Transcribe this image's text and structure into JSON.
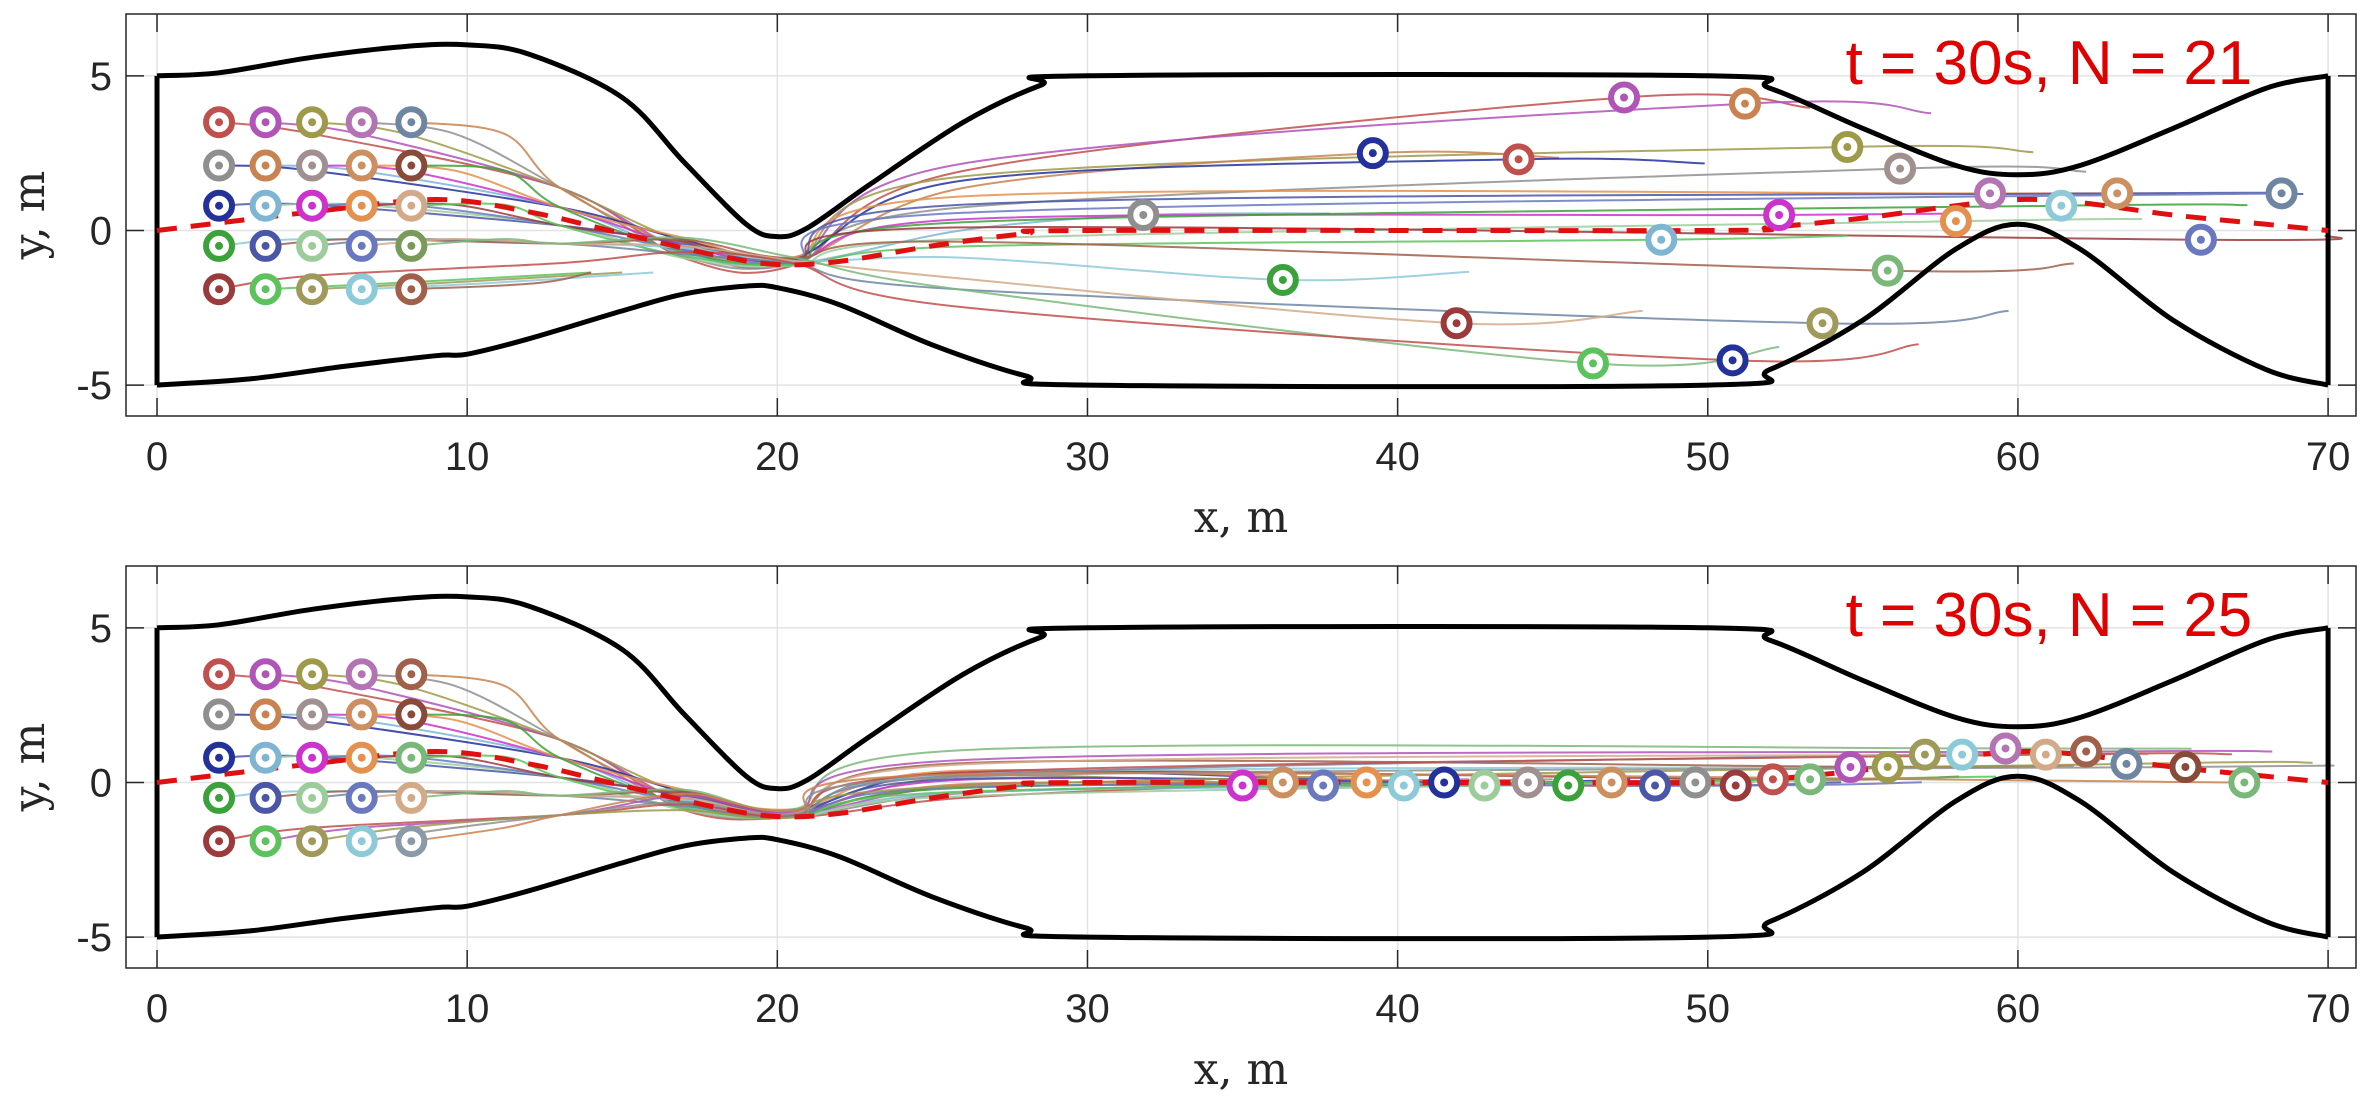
{
  "chart_data": [
    {
      "type": "line",
      "panel": "top",
      "annotation": "t = 30s, N = 21",
      "time_s": 30,
      "agent_count": 21,
      "xlabel": "x, m",
      "ylabel": "y, m",
      "xlim": [
        -1,
        70.9
      ],
      "ylim": [
        -6,
        7
      ],
      "x_ticks": [
        0,
        10,
        20,
        30,
        40,
        50,
        60,
        70
      ],
      "y_ticks": [
        -5,
        0,
        5
      ],
      "grid": true,
      "boundary_upper": [
        [
          0,
          5
        ],
        [
          2,
          5.1
        ],
        [
          5,
          5.6
        ],
        [
          8,
          5.95
        ],
        [
          10,
          6
        ],
        [
          12,
          5.7
        ],
        [
          15,
          4.3
        ],
        [
          17,
          2.2
        ],
        [
          19,
          0.2
        ],
        [
          20,
          -0.2
        ],
        [
          21,
          0.1
        ],
        [
          23,
          1.5
        ],
        [
          26,
          3.5
        ],
        [
          28.5,
          4.7
        ],
        [
          30,
          5
        ],
        [
          50,
          5
        ],
        [
          52,
          4.6
        ],
        [
          55,
          3.3
        ],
        [
          58,
          2.1
        ],
        [
          60,
          1.8
        ],
        [
          62,
          2.1
        ],
        [
          65,
          3.3
        ],
        [
          68,
          4.6
        ],
        [
          70,
          5
        ]
      ],
      "boundary_lower": [
        [
          0,
          -5
        ],
        [
          3,
          -4.8
        ],
        [
          6,
          -4.4
        ],
        [
          9,
          -4.05
        ],
        [
          10,
          -4
        ],
        [
          12,
          -3.5
        ],
        [
          15,
          -2.6
        ],
        [
          17,
          -2.05
        ],
        [
          19,
          -1.8
        ],
        [
          20,
          -1.85
        ],
        [
          22,
          -2.4
        ],
        [
          25,
          -3.7
        ],
        [
          28,
          -4.7
        ],
        [
          30,
          -5
        ],
        [
          50,
          -5
        ],
        [
          52,
          -4.5
        ],
        [
          55,
          -2.9
        ],
        [
          58,
          -0.6
        ],
        [
          60,
          0.2
        ],
        [
          62,
          -0.6
        ],
        [
          65,
          -2.9
        ],
        [
          68,
          -4.5
        ],
        [
          70,
          -5
        ]
      ],
      "reference_path": [
        [
          0,
          0
        ],
        [
          5,
          0.6
        ],
        [
          9,
          1.0
        ],
        [
          12,
          0.6
        ],
        [
          15,
          -0.1
        ],
        [
          18,
          -0.8
        ],
        [
          20,
          -1.1
        ],
        [
          22,
          -1.0
        ],
        [
          25,
          -0.5
        ],
        [
          28,
          -0.1
        ],
        [
          30,
          0
        ],
        [
          50,
          0
        ],
        [
          52,
          0.1
        ],
        [
          55,
          0.4
        ],
        [
          58,
          0.8
        ],
        [
          60,
          1.0
        ],
        [
          62,
          0.9
        ],
        [
          65,
          0.5
        ],
        [
          68,
          0.2
        ],
        [
          70,
          0
        ]
      ],
      "agents_initial": [
        {
          "x": 2,
          "y": 3.5,
          "color": "#c0504d"
        },
        {
          "x": 3.5,
          "y": 3.5,
          "color": "#b054b8"
        },
        {
          "x": 5,
          "y": 3.5,
          "color": "#9f9a4a"
        },
        {
          "x": 6.6,
          "y": 3.5,
          "color": "#b474b4"
        },
        {
          "x": 8.2,
          "y": 3.5,
          "color": "#6f86a3"
        },
        {
          "x": 2,
          "y": 2.1,
          "color": "#8f8f8f"
        },
        {
          "x": 3.5,
          "y": 2.1,
          "color": "#c98350"
        },
        {
          "x": 5,
          "y": 2.1,
          "color": "#a09090"
        },
        {
          "x": 6.6,
          "y": 2.1,
          "color": "#cc9060"
        },
        {
          "x": 8.2,
          "y": 2.1,
          "color": "#8a4a3a"
        },
        {
          "x": 2,
          "y": 0.8,
          "color": "#23319b"
        },
        {
          "x": 3.5,
          "y": 0.8,
          "color": "#7db5d3"
        },
        {
          "x": 5,
          "y": 0.8,
          "color": "#cc33cc"
        },
        {
          "x": 6.6,
          "y": 0.8,
          "color": "#e4904f"
        },
        {
          "x": 8.2,
          "y": 0.8,
          "color": "#d2aa88"
        },
        {
          "x": 2,
          "y": -0.5,
          "color": "#3ba13b"
        },
        {
          "x": 3.5,
          "y": -0.5,
          "color": "#4a56a8"
        },
        {
          "x": 5,
          "y": -0.5,
          "color": "#9ccc9c"
        },
        {
          "x": 6.6,
          "y": -0.5,
          "color": "#6a78c0"
        },
        {
          "x": 8.2,
          "y": -0.5,
          "color": "#7a9a5a"
        },
        {
          "x": 2,
          "y": -1.9,
          "color": "#9a3a3a"
        },
        {
          "x": 3.5,
          "y": -1.9,
          "color": "#5cc35c"
        },
        {
          "x": 5,
          "y": -1.9,
          "color": "#9f9a5a"
        },
        {
          "x": 6.6,
          "y": -1.9,
          "color": "#8ccad8"
        },
        {
          "x": 8.2,
          "y": -1.9,
          "color": "#a0604a"
        }
      ],
      "agents_final": [
        {
          "x": 47.3,
          "y": 4.3,
          "color": "#b054b8"
        },
        {
          "x": 51.2,
          "y": 4.1,
          "color": "#c98350"
        },
        {
          "x": 54.5,
          "y": 2.7,
          "color": "#9f9a4a"
        },
        {
          "x": 56.2,
          "y": 2.0,
          "color": "#a09090"
        },
        {
          "x": 39.2,
          "y": 2.5,
          "color": "#23319b"
        },
        {
          "x": 43.9,
          "y": 2.3,
          "color": "#c0504d"
        },
        {
          "x": 31.8,
          "y": 0.5,
          "color": "#8f8f8f"
        },
        {
          "x": 52.3,
          "y": 0.5,
          "color": "#cc33cc"
        },
        {
          "x": 59.1,
          "y": 1.2,
          "color": "#b474b4"
        },
        {
          "x": 61.4,
          "y": 0.8,
          "color": "#8ccad8"
        },
        {
          "x": 63.2,
          "y": 1.2,
          "color": "#cc9060"
        },
        {
          "x": 58.0,
          "y": 0.3,
          "color": "#e4904f"
        },
        {
          "x": 68.5,
          "y": 1.2,
          "color": "#6f86a3"
        },
        {
          "x": 65.9,
          "y": -0.3,
          "color": "#6a78c0"
        },
        {
          "x": 48.5,
          "y": -0.3,
          "color": "#7db5d3"
        },
        {
          "x": 36.3,
          "y": -1.6,
          "color": "#3ba13b"
        },
        {
          "x": 55.8,
          "y": -1.3,
          "color": "#7ab87a"
        },
        {
          "x": 53.7,
          "y": -3.0,
          "color": "#9f9a5a"
        },
        {
          "x": 41.9,
          "y": -3.0,
          "color": "#9a3a3a"
        },
        {
          "x": 46.3,
          "y": -4.3,
          "color": "#5cc35c"
        },
        {
          "x": 50.8,
          "y": -4.2,
          "color": "#23319b"
        }
      ]
    },
    {
      "type": "line",
      "panel": "bottom",
      "annotation": "t = 30s, N = 25",
      "time_s": 30,
      "agent_count": 25,
      "xlabel": "x, m",
      "ylabel": "y, m",
      "xlim": [
        -1,
        70.9
      ],
      "ylim": [
        -6,
        7
      ],
      "x_ticks": [
        0,
        10,
        20,
        30,
        40,
        50,
        60,
        70
      ],
      "y_ticks": [
        -5,
        0,
        5
      ],
      "grid": true,
      "boundary_upper": [
        [
          0,
          5
        ],
        [
          2,
          5.1
        ],
        [
          5,
          5.6
        ],
        [
          8,
          5.95
        ],
        [
          10,
          6
        ],
        [
          12,
          5.7
        ],
        [
          15,
          4.3
        ],
        [
          17,
          2.2
        ],
        [
          19,
          0.2
        ],
        [
          20,
          -0.2
        ],
        [
          21,
          0.1
        ],
        [
          23,
          1.5
        ],
        [
          26,
          3.5
        ],
        [
          28.5,
          4.7
        ],
        [
          30,
          5
        ],
        [
          50,
          5
        ],
        [
          52,
          4.6
        ],
        [
          55,
          3.3
        ],
        [
          58,
          2.1
        ],
        [
          60,
          1.8
        ],
        [
          62,
          2.1
        ],
        [
          65,
          3.3
        ],
        [
          68,
          4.6
        ],
        [
          70,
          5
        ]
      ],
      "boundary_lower": [
        [
          0,
          -5
        ],
        [
          3,
          -4.8
        ],
        [
          6,
          -4.4
        ],
        [
          9,
          -4.05
        ],
        [
          10,
          -4
        ],
        [
          12,
          -3.5
        ],
        [
          15,
          -2.6
        ],
        [
          17,
          -2.05
        ],
        [
          19,
          -1.8
        ],
        [
          20,
          -1.85
        ],
        [
          22,
          -2.4
        ],
        [
          25,
          -3.7
        ],
        [
          28,
          -4.7
        ],
        [
          30,
          -5
        ],
        [
          50,
          -5
        ],
        [
          52,
          -4.5
        ],
        [
          55,
          -2.9
        ],
        [
          58,
          -0.6
        ],
        [
          60,
          0.2
        ],
        [
          62,
          -0.6
        ],
        [
          65,
          -2.9
        ],
        [
          68,
          -4.5
        ],
        [
          70,
          -5
        ]
      ],
      "reference_path": [
        [
          0,
          0
        ],
        [
          5,
          0.6
        ],
        [
          9,
          1.0
        ],
        [
          12,
          0.6
        ],
        [
          15,
          -0.1
        ],
        [
          18,
          -0.8
        ],
        [
          20,
          -1.1
        ],
        [
          22,
          -1.0
        ],
        [
          25,
          -0.5
        ],
        [
          28,
          -0.1
        ],
        [
          30,
          0
        ],
        [
          50,
          0
        ],
        [
          52,
          0.1
        ],
        [
          55,
          0.4
        ],
        [
          58,
          0.8
        ],
        [
          60,
          1.0
        ],
        [
          62,
          0.9
        ],
        [
          65,
          0.5
        ],
        [
          68,
          0.2
        ],
        [
          70,
          0
        ]
      ],
      "agents_initial": [
        {
          "x": 2,
          "y": 3.5,
          "color": "#c0504d"
        },
        {
          "x": 3.5,
          "y": 3.5,
          "color": "#b054b8"
        },
        {
          "x": 5,
          "y": 3.5,
          "color": "#9f9a4a"
        },
        {
          "x": 6.6,
          "y": 3.5,
          "color": "#b474b4"
        },
        {
          "x": 8.2,
          "y": 3.5,
          "color": "#a0604a"
        },
        {
          "x": 2,
          "y": 2.2,
          "color": "#8f8f8f"
        },
        {
          "x": 3.5,
          "y": 2.2,
          "color": "#c98350"
        },
        {
          "x": 5,
          "y": 2.2,
          "color": "#a09090"
        },
        {
          "x": 6.6,
          "y": 2.2,
          "color": "#cc9060"
        },
        {
          "x": 8.2,
          "y": 2.2,
          "color": "#8a4a3a"
        },
        {
          "x": 2,
          "y": 0.8,
          "color": "#23319b"
        },
        {
          "x": 3.5,
          "y": 0.8,
          "color": "#7db5d3"
        },
        {
          "x": 5,
          "y": 0.8,
          "color": "#cc33cc"
        },
        {
          "x": 6.6,
          "y": 0.8,
          "color": "#e4904f"
        },
        {
          "x": 8.2,
          "y": 0.8,
          "color": "#7ab87a"
        },
        {
          "x": 2,
          "y": -0.5,
          "color": "#3ba13b"
        },
        {
          "x": 3.5,
          "y": -0.5,
          "color": "#4a56a8"
        },
        {
          "x": 5,
          "y": -0.5,
          "color": "#9ccc9c"
        },
        {
          "x": 6.6,
          "y": -0.5,
          "color": "#6a78c0"
        },
        {
          "x": 8.2,
          "y": -0.5,
          "color": "#d2aa88"
        },
        {
          "x": 2,
          "y": -1.9,
          "color": "#9a3a3a"
        },
        {
          "x": 3.5,
          "y": -1.9,
          "color": "#5cc35c"
        },
        {
          "x": 5,
          "y": -1.9,
          "color": "#9f9a5a"
        },
        {
          "x": 6.6,
          "y": -1.9,
          "color": "#8ccad8"
        },
        {
          "x": 8.2,
          "y": -1.9,
          "color": "#8a9aa8"
        }
      ],
      "agents_final": [
        {
          "x": 35.0,
          "y": -0.1,
          "color": "#cc33cc"
        },
        {
          "x": 36.3,
          "y": 0.0,
          "color": "#cc9060"
        },
        {
          "x": 37.6,
          "y": -0.1,
          "color": "#6a78c0"
        },
        {
          "x": 39.0,
          "y": 0.0,
          "color": "#e4904f"
        },
        {
          "x": 40.2,
          "y": -0.1,
          "color": "#8ccad8"
        },
        {
          "x": 41.5,
          "y": 0.0,
          "color": "#23319b"
        },
        {
          "x": 42.8,
          "y": -0.1,
          "color": "#9ccc9c"
        },
        {
          "x": 44.2,
          "y": 0.0,
          "color": "#a09090"
        },
        {
          "x": 45.5,
          "y": -0.1,
          "color": "#3ba13b"
        },
        {
          "x": 46.9,
          "y": 0.0,
          "color": "#cc9060"
        },
        {
          "x": 48.3,
          "y": -0.1,
          "color": "#4a56a8"
        },
        {
          "x": 49.6,
          "y": 0.0,
          "color": "#8f8f8f"
        },
        {
          "x": 50.9,
          "y": -0.1,
          "color": "#9a3a3a"
        },
        {
          "x": 52.1,
          "y": 0.1,
          "color": "#c0504d"
        },
        {
          "x": 53.3,
          "y": 0.1,
          "color": "#7ab87a"
        },
        {
          "x": 54.6,
          "y": 0.5,
          "color": "#b054b8"
        },
        {
          "x": 55.8,
          "y": 0.5,
          "color": "#9f9a4a"
        },
        {
          "x": 57.0,
          "y": 0.9,
          "color": "#9f9a5a"
        },
        {
          "x": 58.2,
          "y": 0.9,
          "color": "#8ccad8"
        },
        {
          "x": 59.6,
          "y": 1.1,
          "color": "#b474b4"
        },
        {
          "x": 60.9,
          "y": 0.9,
          "color": "#d2aa88"
        },
        {
          "x": 62.2,
          "y": 1.0,
          "color": "#a0604a"
        },
        {
          "x": 63.5,
          "y": 0.6,
          "color": "#6f86a3"
        },
        {
          "x": 65.4,
          "y": 0.5,
          "color": "#8a4a3a"
        },
        {
          "x": 67.3,
          "y": 0.0,
          "color": "#7ab87a"
        }
      ]
    }
  ]
}
